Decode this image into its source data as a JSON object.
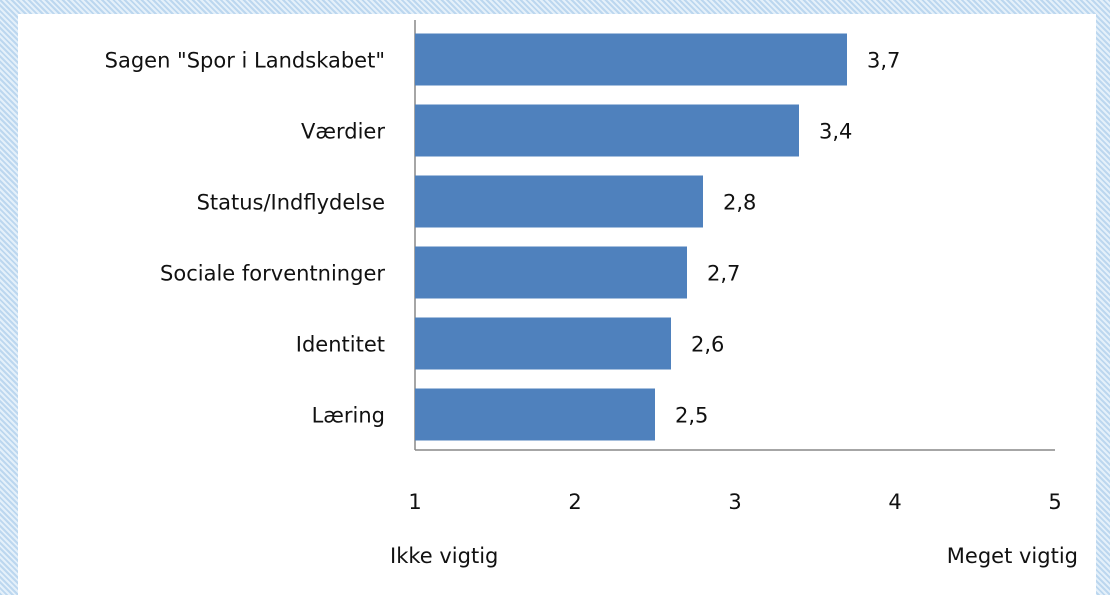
{
  "chart_data": {
    "type": "bar",
    "orientation": "horizontal",
    "categories": [
      "Sagen \"Spor i Landskabet\"",
      "Værdier",
      "Status/Indflydelse",
      "Sociale forventninger",
      "Identitet",
      "Læring"
    ],
    "values": [
      3.7,
      3.4,
      2.8,
      2.7,
      2.6,
      2.5
    ],
    "value_labels": [
      "3,7",
      "3,4",
      "2,8",
      "2,7",
      "2,6",
      "2,5"
    ],
    "color": "#4f81bd",
    "xlim": [
      1,
      5
    ],
    "xticks": [
      1,
      2,
      3,
      4,
      5
    ],
    "x_end_labels": [
      "Ikke vigtig",
      "Meget vigtig"
    ]
  }
}
